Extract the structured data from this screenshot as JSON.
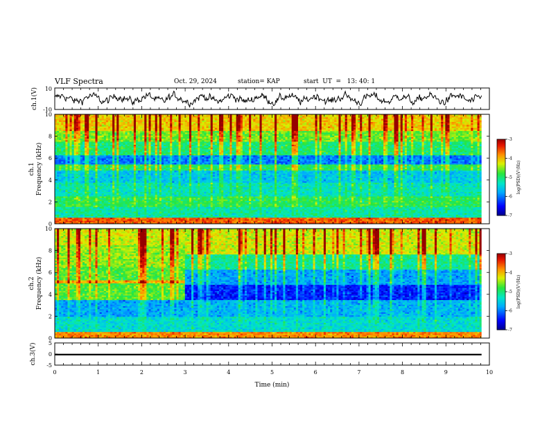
{
  "header": {
    "title": "VLF Spectra",
    "date": "Oct. 29, 2024",
    "station": "station= KAP",
    "start": "start  UT  =   13: 40: 1"
  },
  "chart_data": [
    {
      "type": "line",
      "panel": "ch1-waveform",
      "ylabel": "ch.1(V)",
      "ylim": [
        -10,
        10
      ],
      "yticks": [
        "10",
        "-10"
      ],
      "xlim": [
        0,
        10
      ],
      "x_end": 9.82,
      "description_series": "raw waveform, mostly between -7 and 7 V"
    },
    {
      "type": "heatmap",
      "panel": "ch1-spectrogram",
      "ylabel": "ch.1\nFrequency (kHz)",
      "ylabel_top": "ch.1",
      "ylabel_bottom": "Frequency (kHz)",
      "ylim": [
        0,
        10
      ],
      "yticks": [
        "0",
        "2",
        "4",
        "6",
        "8",
        "10"
      ],
      "xlim": [
        0,
        10
      ],
      "x_end": 9.82,
      "colorbar": {
        "label": "log(PSD)(V²/Hz)",
        "min": -7,
        "max": -3,
        "ticks": [
          "-3",
          "-4",
          "-5",
          "-6",
          "-7"
        ]
      },
      "bands": [
        {
          "from": 0.0,
          "to": 0.6,
          "level": -3.6
        },
        {
          "from": 0.6,
          "to": 1.5,
          "level": -5.2
        },
        {
          "from": 1.5,
          "to": 2.5,
          "level": -4.9
        },
        {
          "from": 2.5,
          "to": 3.7,
          "level": -5.3
        },
        {
          "from": 3.7,
          "to": 4.9,
          "level": -5.6
        },
        {
          "from": 4.9,
          "to": 5.4,
          "level": -4.9
        },
        {
          "from": 5.4,
          "to": 6.2,
          "level": -6.0
        },
        {
          "from": 6.2,
          "to": 7.5,
          "level": -5.0
        },
        {
          "from": 7.5,
          "to": 8.5,
          "level": -4.6
        },
        {
          "from": 8.5,
          "to": 10.0,
          "level": -4.1
        }
      ]
    },
    {
      "type": "heatmap",
      "panel": "ch2-spectrogram",
      "ylabel_top": "ch.2",
      "ylabel_bottom": "Frequency (kHz)",
      "ylim": [
        0,
        10
      ],
      "yticks": [
        "0",
        "2",
        "4",
        "6",
        "8",
        "10"
      ],
      "xlim": [
        0,
        10
      ],
      "x_end": 9.82,
      "colorbar": {
        "label": "log(PSD)(V²/Hz)",
        "min": -7,
        "max": -3,
        "ticks": [
          "-3",
          "-4",
          "-5",
          "-6",
          "-7"
        ]
      },
      "regime_change_min": 2.95,
      "bands_before": [
        {
          "from": 0.0,
          "to": 0.6,
          "level": -3.8
        },
        {
          "from": 0.6,
          "to": 2.0,
          "level": -5.4
        },
        {
          "from": 2.0,
          "to": 3.5,
          "level": -5.8
        },
        {
          "from": 3.5,
          "to": 5.0,
          "level": -4.7
        },
        {
          "from": 5.0,
          "to": 5.3,
          "level": -4.0
        },
        {
          "from": 5.3,
          "to": 6.5,
          "level": -4.7
        },
        {
          "from": 6.5,
          "to": 8.5,
          "level": -4.5
        },
        {
          "from": 8.5,
          "to": 10.0,
          "level": -4.3
        }
      ],
      "bands_after": [
        {
          "from": 0.0,
          "to": 0.6,
          "level": -3.8
        },
        {
          "from": 0.6,
          "to": 2.0,
          "level": -5.4
        },
        {
          "from": 2.0,
          "to": 3.5,
          "level": -5.7
        },
        {
          "from": 3.5,
          "to": 4.8,
          "level": -6.4
        },
        {
          "from": 4.8,
          "to": 6.3,
          "level": -5.8
        },
        {
          "from": 6.3,
          "to": 7.6,
          "level": -5.1
        },
        {
          "from": 7.6,
          "to": 10.0,
          "level": -4.3
        }
      ]
    },
    {
      "type": "line",
      "panel": "ch3-waveform",
      "ylabel": "ch.3(V)",
      "ylim": [
        -5,
        5
      ],
      "yticks": [
        "5",
        "0",
        "-5"
      ],
      "xlim": [
        0,
        10
      ],
      "x_end": 9.82,
      "value_low": -0.6,
      "value_high": 0.1,
      "xlabel": "Time (min)",
      "xticks": [
        "0",
        "1",
        "2",
        "3",
        "4",
        "5",
        "6",
        "7",
        "8",
        "9",
        "10"
      ]
    }
  ]
}
